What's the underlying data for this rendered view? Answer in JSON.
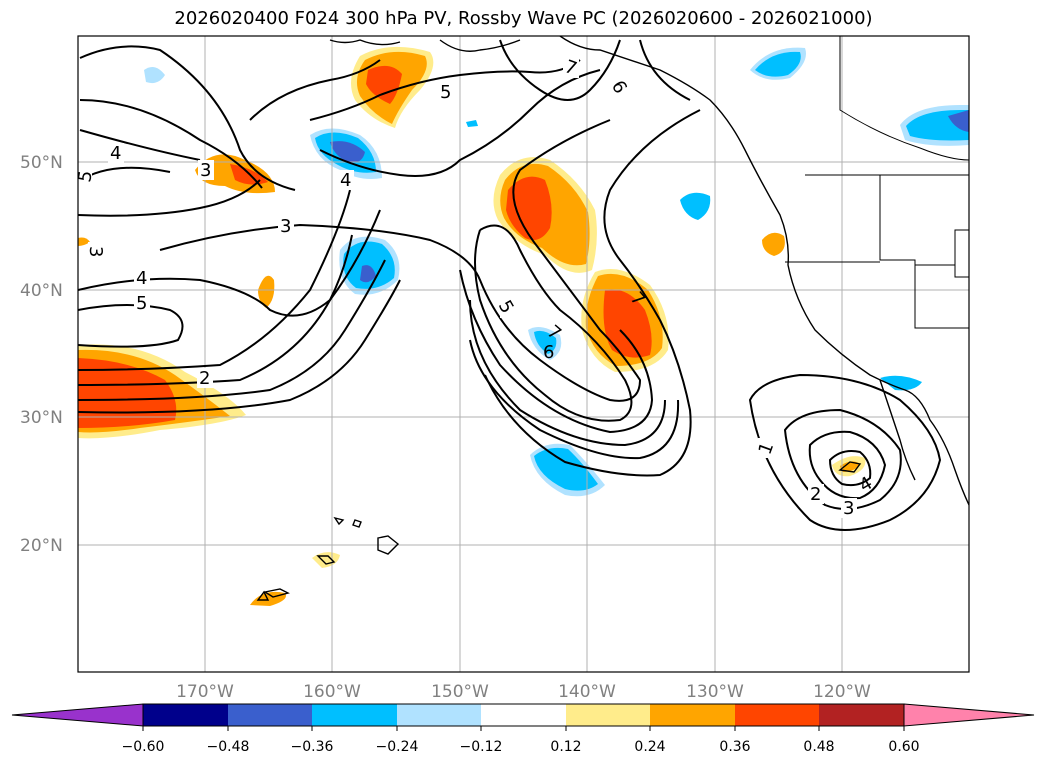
{
  "title": "2026020400 F024 300 hPa PV, Rossby Wave PC (2026020600 - 2026021000)",
  "lat_labels": [
    "50°N",
    "40°N",
    "30°N",
    "20°N"
  ],
  "lon_labels": [
    "170°W",
    "160°W",
    "150°W",
    "140°W",
    "130°W",
    "120°W"
  ],
  "colorbar": {
    "tick_labels": [
      "−0.60",
      "−0.48",
      "−0.36",
      "−0.24",
      "−0.12",
      "0.12",
      "0.24",
      "0.36",
      "0.48",
      "0.60"
    ],
    "colors": [
      "#9932cc",
      "#00008b",
      "#3a5fcd",
      "#00bfff",
      "#b0e2ff",
      "#ffffff",
      "#ffec8b",
      "#ffa500",
      "#ff4500",
      "#b22222",
      "#ff82ab"
    ]
  },
  "contour_labels": [
    "1",
    "2",
    "3",
    "4",
    "5",
    "6",
    "7"
  ],
  "legend_colors": {
    "positive_light": "#ffec8b",
    "positive_mid": "#ffa500",
    "positive_high": "#ff4500",
    "negative_light": "#b0e2ff",
    "negative_mid": "#00bfff",
    "negative_high": "#3a5fcd"
  }
}
